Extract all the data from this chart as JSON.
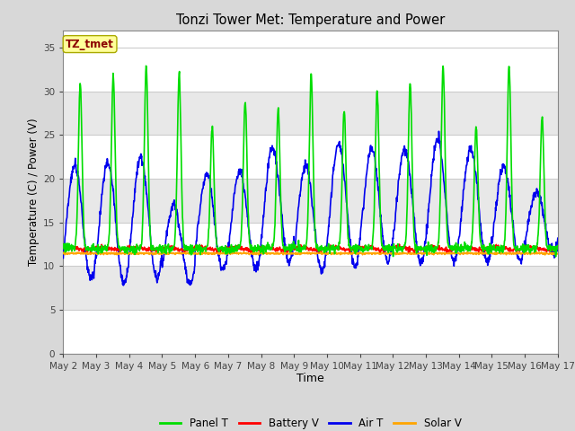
{
  "title": "Tonzi Tower Met: Temperature and Power",
  "xlabel": "Time",
  "ylabel": "Temperature (C) / Power (V)",
  "ylim": [
    0,
    37
  ],
  "yticks": [
    0,
    5,
    10,
    15,
    20,
    25,
    30,
    35
  ],
  "x_labels": [
    "May 2",
    "May 3",
    "May 4",
    "May 5",
    "May 6",
    "May 7",
    "May 8",
    "May 9",
    "May 10",
    "May 11",
    "May 12",
    "May 13",
    "May 14",
    "May 15",
    "May 16",
    "May 17"
  ],
  "annotation_text": "TZ_tmet",
  "annotation_color": "#8B0000",
  "annotation_bg": "#FFFF99",
  "annotation_edge": "#AAAA00",
  "legend_labels": [
    "Panel T",
    "Battery V",
    "Air T",
    "Solar V"
  ],
  "legend_colors": [
    "#00DD00",
    "#FF0000",
    "#0000EE",
    "#FFA500"
  ],
  "panel_t_color": "#00DD00",
  "battery_v_color": "#FF0000",
  "air_t_color": "#0000EE",
  "solar_v_color": "#FFA500",
  "fig_bg_color": "#D8D8D8",
  "plot_bg_color": "#FFFFFF",
  "grid_color": "#CCCCCC",
  "band_color": "#E8E8E8",
  "num_days": 15,
  "points_per_day": 96,
  "figsize": [
    6.4,
    4.8
  ],
  "dpi": 100
}
